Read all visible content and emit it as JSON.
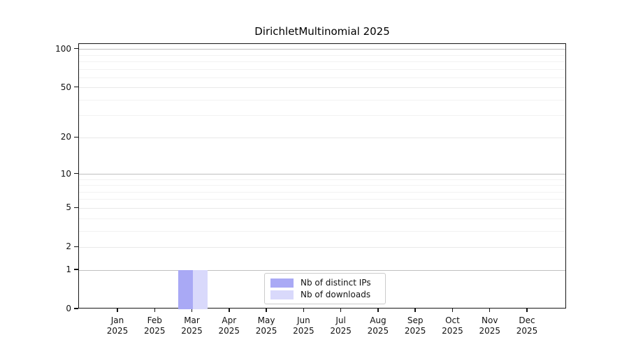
{
  "title": "DirichletMultinomial 2025",
  "chart_data": {
    "type": "bar",
    "title": "DirichletMultinomial 2025",
    "xlabel": "",
    "ylabel": "",
    "categories": [
      {
        "month": "Jan",
        "year": "2025"
      },
      {
        "month": "Feb",
        "year": "2025"
      },
      {
        "month": "Mar",
        "year": "2025"
      },
      {
        "month": "Apr",
        "year": "2025"
      },
      {
        "month": "May",
        "year": "2025"
      },
      {
        "month": "Jun",
        "year": "2025"
      },
      {
        "month": "Jul",
        "year": "2025"
      },
      {
        "month": "Aug",
        "year": "2025"
      },
      {
        "month": "Sep",
        "year": "2025"
      },
      {
        "month": "Oct",
        "year": "2025"
      },
      {
        "month": "Nov",
        "year": "2025"
      },
      {
        "month": "Dec",
        "year": "2025"
      }
    ],
    "series": [
      {
        "name": "Nb of distinct IPs",
        "color": "#a9a9f5",
        "values": [
          0,
          0,
          1,
          0,
          0,
          0,
          0,
          0,
          0,
          0,
          0,
          0
        ]
      },
      {
        "name": "Nb of downloads",
        "color": "#d9d9fb",
        "values": [
          0,
          0,
          1,
          0,
          0,
          0,
          0,
          0,
          0,
          0,
          0,
          0
        ]
      }
    ],
    "y_scale": "log1p",
    "y_major_ticks": [
      0,
      1,
      2,
      5,
      10,
      20,
      50,
      100
    ],
    "y_decade_ticks": [
      1,
      10,
      100
    ],
    "y_minor_ticks": [
      3,
      4,
      6,
      7,
      8,
      9,
      30,
      40,
      60,
      70,
      80,
      90
    ],
    "ylim": [
      0,
      110
    ],
    "grid": "horizontal",
    "legend_position": "lower center"
  }
}
